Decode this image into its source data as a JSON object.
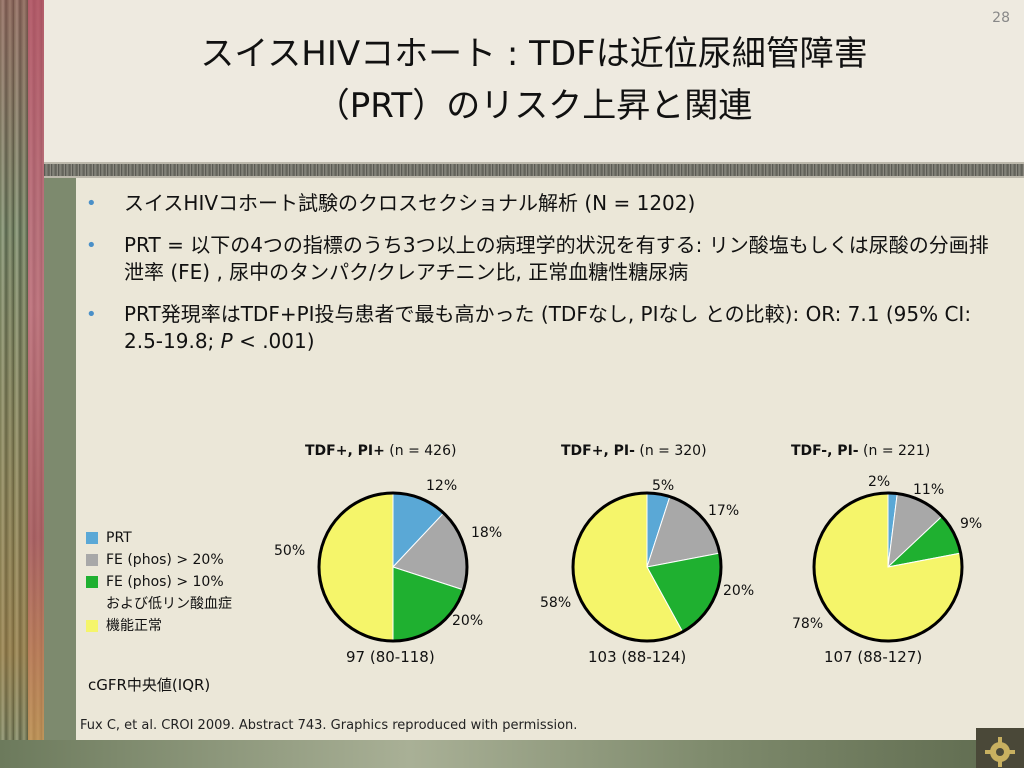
{
  "page_number": "28",
  "title": {
    "line1": "スイスHIVコホート : TDFは近位尿細管障害",
    "line2": "（PRT）のリスク上昇と関連"
  },
  "bullets": [
    "スイスHIVコホート試験のクロスセクショナル解析 (N = 1202)",
    "PRT = 以下の4つの指標のうち3つ以上の病理学的状況を有する: リン酸塩もしくは尿酸の分画排泄率 (FE) , 尿中のタンパク/クレアチニン比, 正常血糖性糖尿病",
    "PRT発現率はTDF+PI投与患者で最も高かった (TDFなし, PIなし との比較): OR: 7.1 (95% CI: 2.5-19.8; P < .001)"
  ],
  "bullet3_parts": {
    "before": "PRT発現率はTDF+PI投与患者で最も高かった (TDFなし, PIなし との比較): OR: 7.1 (95% CI: 2.5-19.8; ",
    "italic": "P",
    "after": " < .001)"
  },
  "legend": {
    "prt": "PRT",
    "fe20": "FE (phos) > 20%",
    "fe10_line1": "FE (phos) > 10%",
    "fe10_line2": "および低リン酸血症",
    "normal": "機能正常"
  },
  "colors": {
    "prt": "#5aa8d6",
    "fe20": "#a8a8a8",
    "fe10": "#1fb030",
    "normal": "#f5f56a"
  },
  "egfr_label": "cGFR中央値(IQR)",
  "citation": "Fux C, et al. CROI 2009. Abstract 743. Graphics reproduced with permission.",
  "chart_data": [
    {
      "type": "pie",
      "title_bold": "TDF+, PI+",
      "title_n": " (n = 426)",
      "categories": [
        "PRT",
        "FE (phos) > 20%",
        "FE (phos) > 10% および低リン酸血症",
        "機能正常"
      ],
      "values": [
        12,
        18,
        20,
        50
      ],
      "labels": [
        "12%",
        "18%",
        "20%",
        "50%"
      ],
      "egfr": "97 (80-118)"
    },
    {
      "type": "pie",
      "title_bold": "TDF+, PI-",
      "title_n": " (n = 320)",
      "categories": [
        "PRT",
        "FE (phos) > 20%",
        "FE (phos) > 10% および低リン酸血症",
        "機能正常"
      ],
      "values": [
        5,
        17,
        20,
        58
      ],
      "labels": [
        "5%",
        "17%",
        "20%",
        "58%"
      ],
      "egfr": "103 (88-124)"
    },
    {
      "type": "pie",
      "title_bold": "TDF-, PI-",
      "title_n": " (n = 221)",
      "categories": [
        "PRT",
        "FE (phos) > 20%",
        "FE (phos) > 10% および低リン酸血症",
        "機能正常"
      ],
      "values": [
        2,
        11,
        9,
        78
      ],
      "labels": [
        "2%",
        "11%",
        "9%",
        "78%"
      ],
      "egfr": "107 (88-127)"
    }
  ]
}
